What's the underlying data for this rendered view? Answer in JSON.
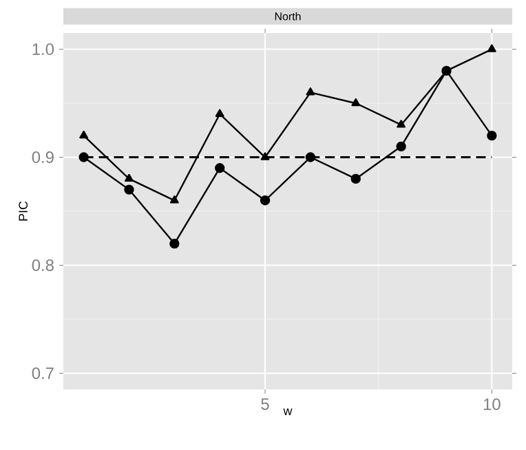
{
  "chart_data": {
    "type": "line",
    "title": "North",
    "xlabel": "w",
    "ylabel": "PIC",
    "x": [
      1,
      2,
      3,
      4,
      5,
      6,
      7,
      8,
      9,
      10
    ],
    "series": [
      {
        "color": "#000000",
        "marker": "circle",
        "values": [
          0.9,
          0.87,
          0.82,
          0.89,
          0.86,
          0.9,
          0.88,
          0.91,
          0.98,
          0.92
        ]
      },
      {
        "color": "#000000",
        "marker": "triangle",
        "values": [
          0.92,
          0.88,
          0.86,
          0.94,
          0.9,
          0.96,
          0.95,
          0.93,
          0.98,
          1.0
        ]
      }
    ],
    "xlim": [
      0.55,
      10.45
    ],
    "ylim": [
      0.685,
      1.015
    ],
    "xticks": [
      5,
      10
    ],
    "yticks": [
      0.7,
      0.8,
      0.9,
      {
        "value": 1.0,
        "label": "1.0"
      }
    ],
    "grid": true,
    "line_style": "solid",
    "ref_lines": [
      {
        "axis": "y",
        "value": 0.9,
        "color": "#000000",
        "line_style": "dashed"
      }
    ]
  }
}
